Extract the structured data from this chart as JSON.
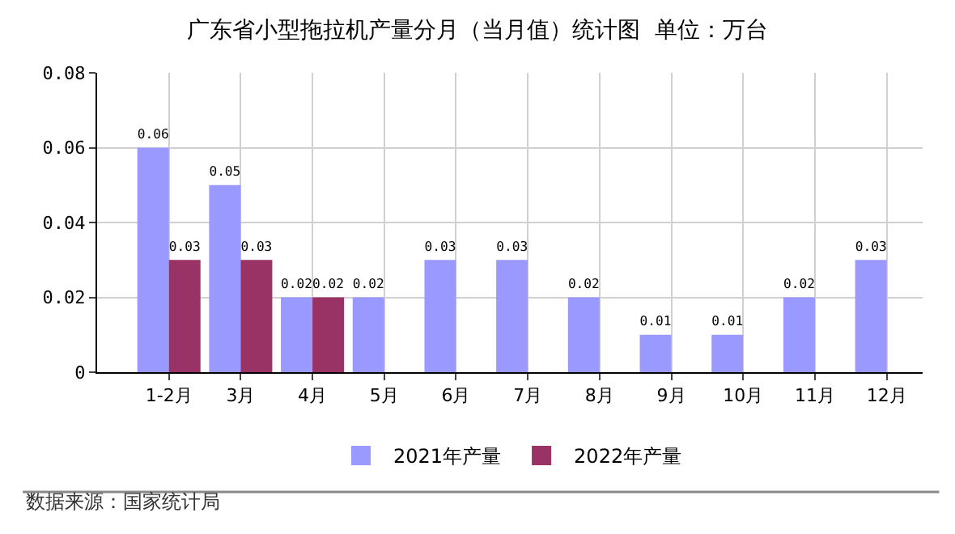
{
  "chart_data": {
    "type": "bar",
    "title": "广东省小型拖拉机产量分月（当月值）统计图  单位：万台",
    "categories": [
      "1-2月",
      "3月",
      "4月",
      "5月",
      "6月",
      "7月",
      "8月",
      "9月",
      "10月",
      "11月",
      "12月"
    ],
    "series": [
      {
        "name": "2021年产量",
        "color": "#9999ff",
        "values": [
          0.06,
          0.05,
          0.02,
          0.02,
          0.03,
          0.03,
          0.02,
          0.01,
          0.01,
          0.02,
          0.03
        ]
      },
      {
        "name": "2022年产量",
        "color": "#993366",
        "values": [
          0.03,
          0.03,
          0.02,
          null,
          null,
          null,
          null,
          null,
          null,
          null,
          null
        ]
      }
    ],
    "ylim": [
      0,
      0.08
    ],
    "yticks": [
      0,
      0.02,
      0.04,
      0.06,
      0.08
    ],
    "grid": true,
    "legend": "bottom",
    "data_labels": true,
    "annotations": [
      "数据来源：国家统计局"
    ]
  }
}
